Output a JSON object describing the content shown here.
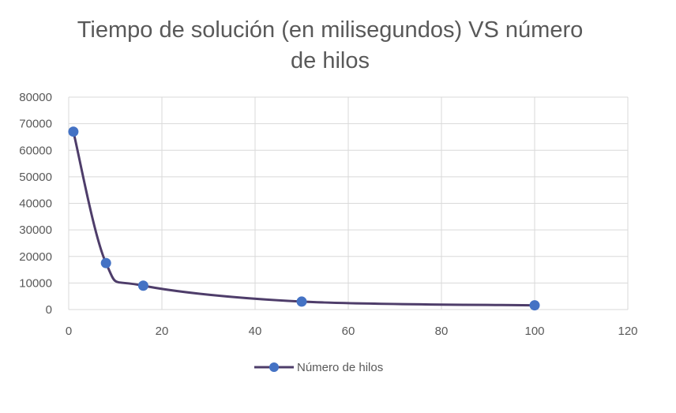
{
  "chart_data": {
    "type": "scatter",
    "title_lines": [
      "Tiempo de solución (en milisegundos) VS número",
      "de hilos"
    ],
    "xlabel": "",
    "ylabel": "",
    "xlim": [
      0,
      120
    ],
    "ylim": [
      0,
      80000
    ],
    "x_ticks": [
      0,
      20,
      40,
      60,
      80,
      100,
      120
    ],
    "y_ticks": [
      0,
      10000,
      20000,
      30000,
      40000,
      50000,
      60000,
      70000,
      80000
    ],
    "grid": true,
    "smooth_line": true,
    "legend_position": "bottom",
    "series": [
      {
        "name": "Número de hilos",
        "line_color": "#4e3d6a",
        "marker_color": "#4472c4",
        "points": [
          {
            "x": 1,
            "y": 67000
          },
          {
            "x": 8,
            "y": 17500
          },
          {
            "x": 16,
            "y": 9000
          },
          {
            "x": 50,
            "y": 3000
          },
          {
            "x": 100,
            "y": 1600
          }
        ]
      }
    ]
  }
}
